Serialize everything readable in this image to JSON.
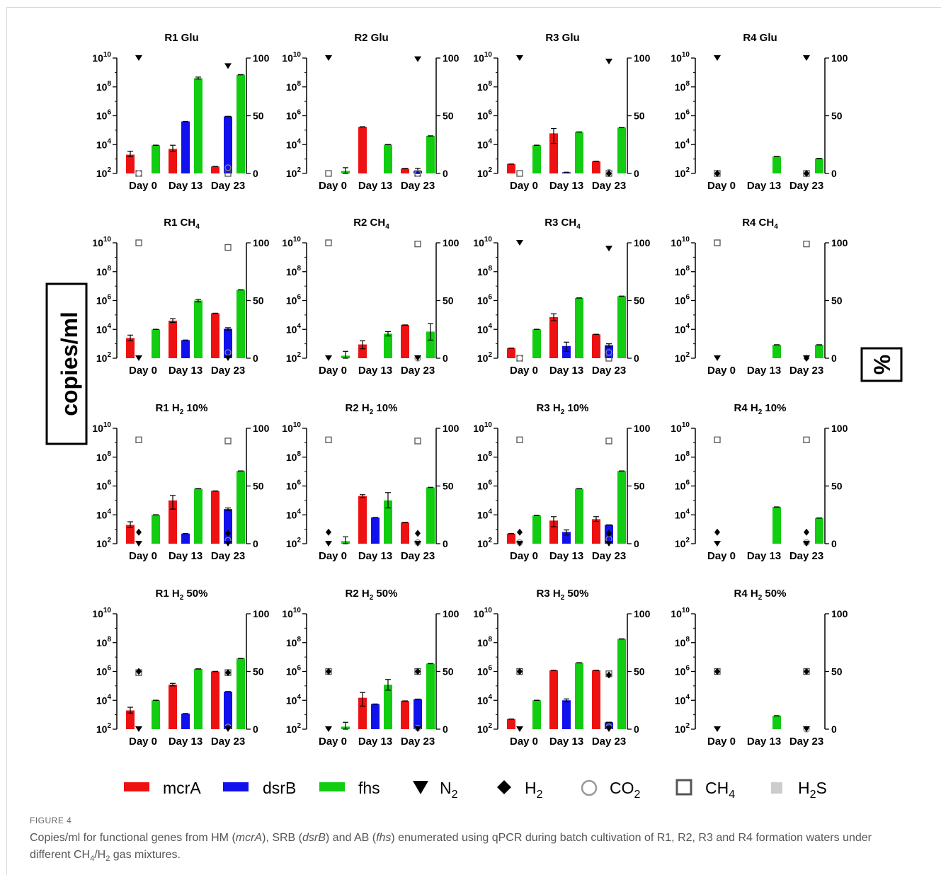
{
  "figure_label": "FIGURE 4",
  "caption": {
    "parts": [
      {
        "t": "Copies/ml for functional genes from HM ("
      },
      {
        "t": "mcrA",
        "i": true
      },
      {
        "t": "), SRB ("
      },
      {
        "t": "dsrB",
        "i": true
      },
      {
        "t": ") and AB ("
      },
      {
        "t": "fhs",
        "i": true
      },
      {
        "t": ") enumerated using qPCR during batch cultivation of R1, R2, R3 and R4 formation waters under different CH"
      },
      {
        "t": "4",
        "sub": true
      },
      {
        "t": "/H"
      },
      {
        "t": "2",
        "sub": true
      },
      {
        "t": " gas mixtures."
      }
    ]
  },
  "y_label_left": "copies/ml",
  "y_label_right": "%",
  "colors": {
    "mcrA": "#ee1111",
    "dsrB": "#1111ee",
    "fhs": "#11cc11",
    "marker": "#000000",
    "co2": "#999999",
    "h2s": "#cccccc"
  },
  "legend": [
    {
      "key": "mcrA",
      "label": "mcrA",
      "sub": "",
      "kind": "bar",
      "color": "#ee1111"
    },
    {
      "key": "dsrB",
      "label": "dsrB",
      "sub": "",
      "kind": "bar",
      "color": "#1111ee"
    },
    {
      "key": "fhs",
      "label": "fhs",
      "sub": "",
      "kind": "bar",
      "color": "#11cc11"
    },
    {
      "key": "N2",
      "label": "N",
      "sub": "2",
      "kind": "triangle"
    },
    {
      "key": "H2",
      "label": "H",
      "sub": "2",
      "kind": "diamond"
    },
    {
      "key": "CO2",
      "label": "CO",
      "sub": "2",
      "kind": "circle"
    },
    {
      "key": "CH4",
      "label": "CH",
      "sub": "4",
      "kind": "square"
    },
    {
      "key": "H2S",
      "label": "H",
      "sub": "2",
      "kind": "filledsquare",
      "suffix": "S"
    }
  ],
  "chart_data": {
    "type": "bar",
    "categories": [
      "Day 0",
      "Day 13",
      "Day 23"
    ],
    "left_axis": {
      "scale": "log",
      "ylim": [
        100,
        10000000000
      ],
      "ticks": [
        100,
        10000,
        1000000,
        100000000,
        10000000000
      ]
    },
    "right_axis": {
      "ylim": [
        0,
        100
      ],
      "ticks": [
        0,
        50,
        100
      ]
    },
    "panels": [
      {
        "title": "R1 Glu",
        "sub": "",
        "suffix": "",
        "bars": {
          "mcrA": [
            [
              2000,
              1500,
              3500
            ],
            [
              5000,
              3500,
              9000
            ],
            [
              300,
              null,
              null
            ]
          ],
          "dsrB": [
            null,
            [
              400000,
              null,
              null
            ],
            [
              900000,
              null,
              null
            ]
          ],
          "fhs": [
            [
              9000,
              null,
              null
            ],
            [
              400000000,
              350000000,
              480000000
            ],
            [
              700000000,
              null,
              null
            ]
          ]
        },
        "gas": {
          "N2": [
            100,
            93
          ],
          "H2": [
            null,
            null
          ],
          "CO2": [
            0,
            5
          ],
          "CH4": [
            0,
            0
          ]
        }
      },
      {
        "title": "R2 Glu",
        "sub": "",
        "suffix": "",
        "bars": {
          "mcrA": [
            null,
            [
              170000,
              null,
              null
            ],
            [
              220,
              null,
              null
            ]
          ],
          "dsrB": [
            null,
            null,
            [
              150,
              100,
              230
            ]
          ],
          "fhs": [
            [
              150,
              100,
              250
            ],
            [
              10000,
              null,
              null
            ],
            [
              40000,
              null,
              null
            ]
          ]
        },
        "gas": {
          "N2": [
            100,
            99
          ],
          "H2": [
            null,
            null
          ],
          "CO2": [
            null,
            0
          ],
          "CH4": [
            0,
            0
          ]
        }
      },
      {
        "title": "R3 Glu",
        "sub": "",
        "suffix": "",
        "bars": {
          "mcrA": [
            [
              450,
              null,
              null
            ],
            [
              60000,
              12000,
              130000
            ],
            [
              700,
              null,
              null
            ]
          ],
          "dsrB": [
            null,
            [
              120,
              null,
              null
            ],
            null
          ],
          "fhs": [
            [
              9000,
              null,
              null
            ],
            [
              75000,
              null,
              null
            ],
            [
              150000,
              null,
              null
            ]
          ]
        },
        "gas": {
          "N2": [
            100,
            97
          ],
          "H2": [
            null,
            0
          ],
          "CO2": [
            null,
            1
          ],
          "CH4": [
            0,
            0
          ]
        }
      },
      {
        "title": "R4 Glu",
        "sub": "",
        "suffix": "",
        "bars": {
          "mcrA": [
            null,
            null,
            null
          ],
          "dsrB": [
            null,
            null,
            null
          ],
          "fhs": [
            null,
            [
              1500,
              null,
              null
            ],
            [
              1100,
              null,
              null
            ]
          ]
        },
        "gas": {
          "N2": [
            100,
            100
          ],
          "H2": [
            0,
            0
          ],
          "CO2": [
            null,
            null
          ],
          "CH4": [
            0,
            0
          ]
        }
      },
      {
        "title": "R1 CH",
        "sub": "4",
        "suffix": "",
        "bars": {
          "mcrA": [
            [
              2500,
              1600,
              4000
            ],
            [
              40000,
              30000,
              55000
            ],
            [
              130000,
              null,
              null
            ]
          ],
          "dsrB": [
            null,
            [
              1800,
              null,
              null
            ],
            [
              11000,
              9000,
              13000
            ]
          ],
          "fhs": [
            [
              10000,
              null,
              null
            ],
            [
              1000000,
              800000,
              1200000
            ],
            [
              5500000,
              null,
              null
            ]
          ]
        },
        "gas": {
          "N2": [
            0,
            0
          ],
          "H2": [
            null,
            null
          ],
          "CO2": [
            null,
            5
          ],
          "CH4": [
            100,
            96
          ]
        }
      },
      {
        "title": "R2 CH",
        "sub": "4",
        "suffix": "",
        "bars": {
          "mcrA": [
            null,
            [
              900,
              450,
              1600
            ],
            [
              20000,
              null,
              null
            ]
          ],
          "dsrB": [
            null,
            null,
            null
          ],
          "fhs": [
            [
              150,
              100,
              300
            ],
            [
              5000,
              3500,
              7000
            ],
            [
              7000,
              1800,
              25000
            ]
          ]
        },
        "gas": {
          "N2": [
            0,
            0
          ],
          "H2": [
            null,
            null
          ],
          "CO2": [
            null,
            0
          ],
          "CH4": [
            100,
            99
          ]
        }
      },
      {
        "title": "R3 CH",
        "sub": "4",
        "suffix": "",
        "bars": {
          "mcrA": [
            [
              500,
              null,
              null
            ],
            [
              70000,
              40000,
              120000
            ],
            [
              4500,
              null,
              null
            ]
          ],
          "dsrB": [
            null,
            [
              700,
              300,
              1300
            ],
            [
              800,
              600,
              1000
            ]
          ],
          "fhs": [
            [
              10000,
              null,
              null
            ],
            [
              1500000,
              null,
              null
            ],
            [
              2000000,
              null,
              null
            ]
          ]
        },
        "gas": {
          "N2": [
            100,
            95
          ],
          "H2": [
            null,
            null
          ],
          "CO2": [
            0,
            5
          ],
          "CH4": [
            0,
            0
          ]
        }
      },
      {
        "title": "R4 CH",
        "sub": "4",
        "suffix": "",
        "bars": {
          "mcrA": [
            null,
            null,
            null
          ],
          "dsrB": [
            null,
            null,
            null
          ],
          "fhs": [
            null,
            [
              850,
              null,
              null
            ],
            [
              850,
              null,
              null
            ]
          ]
        },
        "gas": {
          "N2": [
            0,
            0
          ],
          "H2": [
            null,
            0
          ],
          "CO2": [
            null,
            null
          ],
          "CH4": [
            100,
            99
          ]
        }
      },
      {
        "title": "R1 H",
        "sub": "2",
        "suffix": " 10%",
        "bars": {
          "mcrA": [
            [
              2000,
              1300,
              3300
            ],
            [
              100000,
              25000,
              220000
            ],
            [
              450000,
              null,
              null
            ]
          ],
          "dsrB": [
            null,
            [
              500,
              null,
              null
            ],
            [
              25000,
              20000,
              30000
            ]
          ],
          "fhs": [
            [
              10000,
              null,
              null
            ],
            [
              650000,
              null,
              null
            ],
            [
              11000000,
              null,
              null
            ]
          ]
        },
        "gas": {
          "N2": [
            0,
            0
          ],
          "H2": [
            10,
            9
          ],
          "CO2": [
            null,
            3
          ],
          "CH4": [
            90,
            89
          ]
        }
      },
      {
        "title": "R2 H",
        "sub": "2",
        "suffix": " 10%",
        "bars": {
          "mcrA": [
            null,
            [
              200000,
              160000,
              250000
            ],
            [
              3000,
              null,
              null
            ]
          ],
          "dsrB": [
            null,
            [
              6500,
              null,
              null
            ],
            null
          ],
          "fhs": [
            [
              150,
              100,
              300
            ],
            [
              100000,
              30000,
              350000
            ],
            [
              800000,
              null,
              null
            ]
          ]
        },
        "gas": {
          "N2": [
            0,
            0
          ],
          "H2": [
            10,
            9
          ],
          "CO2": [
            null,
            1
          ],
          "CH4": [
            90,
            89
          ]
        }
      },
      {
        "title": "R3 H",
        "sub": "2",
        "suffix": " 10%",
        "bars": {
          "mcrA": [
            [
              500,
              null,
              null
            ],
            [
              4000,
              1500,
              7500
            ],
            [
              5000,
              3500,
              7500
            ]
          ],
          "dsrB": [
            null,
            [
              650,
              400,
              900
            ],
            [
              2000,
              null,
              null
            ]
          ],
          "fhs": [
            [
              9000,
              null,
              null
            ],
            [
              650000,
              null,
              null
            ],
            [
              11000000,
              null,
              null
            ]
          ]
        },
        "gas": {
          "N2": [
            0,
            0
          ],
          "H2": [
            10,
            9
          ],
          "CO2": [
            1,
            4
          ],
          "CH4": [
            90,
            89
          ]
        }
      },
      {
        "title": "R4 H",
        "sub": "2",
        "suffix": " 10%",
        "bars": {
          "mcrA": [
            null,
            null,
            null
          ],
          "dsrB": [
            null,
            null,
            null
          ],
          "fhs": [
            null,
            [
              35000,
              null,
              null
            ],
            [
              6000,
              null,
              null
            ]
          ]
        },
        "gas": {
          "N2": [
            0,
            0
          ],
          "H2": [
            10,
            10
          ],
          "CO2": [
            null,
            1
          ],
          "CH4": [
            90,
            90
          ]
        }
      },
      {
        "title": "R1 H",
        "sub": "2",
        "suffix": " 50%",
        "bars": {
          "mcrA": [
            [
              2000,
              1300,
              3300
            ],
            [
              120000,
              100000,
              150000
            ],
            [
              1000000,
              null,
              null
            ]
          ],
          "dsrB": [
            null,
            [
              1200,
              null,
              null
            ],
            [
              40000,
              null,
              null
            ]
          ],
          "fhs": [
            [
              10000,
              null,
              null
            ],
            [
              1500000,
              null,
              null
            ],
            [
              8000000,
              null,
              null
            ]
          ]
        },
        "gas": {
          "N2": [
            0,
            0
          ],
          "H2": [
            50,
            49
          ],
          "CO2": [
            null,
            2
          ],
          "CH4": [
            49,
            49
          ]
        }
      },
      {
        "title": "R2 H",
        "sub": "2",
        "suffix": " 50%",
        "bars": {
          "mcrA": [
            null,
            [
              15000,
              4000,
              35000
            ],
            [
              9000,
              null,
              null
            ]
          ],
          "dsrB": [
            null,
            [
              5500,
              null,
              null
            ],
            [
              12000,
              null,
              null
            ]
          ],
          "fhs": [
            [
              150,
              100,
              300
            ],
            [
              120000,
              50000,
              280000
            ],
            [
              3500000,
              null,
              null
            ]
          ]
        },
        "gas": {
          "N2": [
            0,
            0
          ],
          "H2": [
            50,
            50
          ],
          "CO2": [
            null,
            1
          ],
          "CH4": [
            50,
            50
          ]
        }
      },
      {
        "title": "R3 H",
        "sub": "2",
        "suffix": " 50%",
        "bars": {
          "mcrA": [
            [
              500,
              null,
              null
            ],
            [
              1200000,
              null,
              null
            ],
            [
              1200000,
              null,
              null
            ]
          ],
          "dsrB": [
            null,
            [
              10000,
              8000,
              12500
            ],
            [
              300,
              null,
              null
            ]
          ],
          "fhs": [
            [
              10000,
              null,
              null
            ],
            [
              4000000,
              null,
              null
            ],
            [
              180000000,
              null,
              null
            ]
          ]
        },
        "gas": {
          "N2": [
            0,
            0
          ],
          "H2": [
            50,
            47
          ],
          "CO2": [
            null,
            2
          ],
          "CH4": [
            50,
            48
          ]
        }
      },
      {
        "title": "R4 H",
        "sub": "2",
        "suffix": " 50%",
        "bars": {
          "mcrA": [
            null,
            null,
            null
          ],
          "dsrB": [
            null,
            null,
            null
          ],
          "fhs": [
            null,
            [
              850,
              null,
              null
            ],
            null
          ]
        },
        "gas": {
          "N2": [
            0,
            0
          ],
          "H2": [
            50,
            50
          ],
          "CO2": [
            null,
            0
          ],
          "CH4": [
            50,
            50
          ]
        }
      }
    ]
  }
}
